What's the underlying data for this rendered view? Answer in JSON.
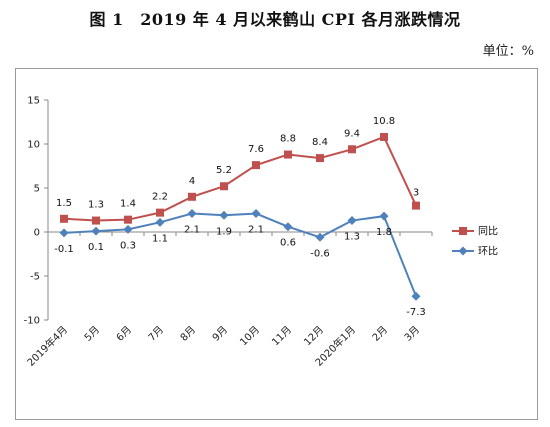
{
  "page": {
    "title": "图 1　2019 年 4 月以来鹤山 CPI 各月涨跌情况",
    "unit": "单位：%"
  },
  "chart_data": {
    "type": "line",
    "title": "图 1　2019 年 4 月以来鹤山 CPI 各月涨跌情况",
    "xlabel": "",
    "ylabel": "",
    "ylim": [
      -10,
      15
    ],
    "yticks": [
      -10,
      -5,
      0,
      5,
      10,
      15
    ],
    "grid": false,
    "legend_position": "right",
    "categories": [
      "2019年4月",
      "5月",
      "6月",
      "7月",
      "8月",
      "9月",
      "10月",
      "11月",
      "12月",
      "2020年1月",
      "2月",
      "3月"
    ],
    "series": [
      {
        "name": "同比",
        "color": "#c0504d",
        "marker": "square",
        "values": [
          1.5,
          1.3,
          1.4,
          2.2,
          4,
          5.2,
          7.6,
          8.8,
          8.4,
          9.4,
          10.8,
          3
        ],
        "labels": [
          "1.5",
          "1.3",
          "1.4",
          "2.2",
          "4",
          "5.2",
          "7.6",
          "8.8",
          "8.4",
          "9.4",
          "10.8",
          "3"
        ]
      },
      {
        "name": "环比",
        "color": "#4f81bd",
        "marker": "diamond",
        "values": [
          -0.1,
          0.1,
          0.3,
          1.1,
          2.1,
          1.9,
          2.1,
          0.6,
          -0.6,
          1.3,
          1.8,
          -7.3
        ],
        "labels": [
          "-0.1",
          "0.1",
          "0.3",
          "1.1",
          "2.1",
          "1.9",
          "2.1",
          "0.6",
          "-0.6",
          "1.3",
          "1.8",
          "-7.3"
        ]
      }
    ]
  }
}
